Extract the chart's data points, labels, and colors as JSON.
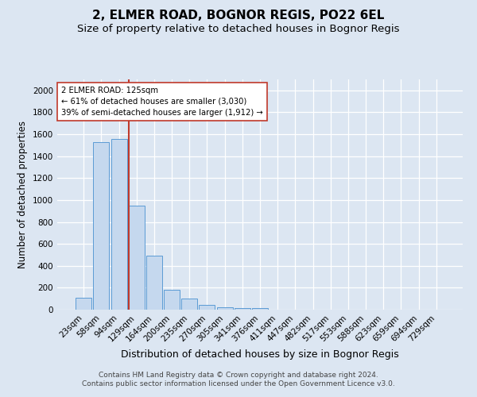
{
  "title": "2, ELMER ROAD, BOGNOR REGIS, PO22 6EL",
  "subtitle": "Size of property relative to detached houses in Bognor Regis",
  "xlabel": "Distribution of detached houses by size in Bognor Regis",
  "ylabel": "Number of detached properties",
  "categories": [
    "23sqm",
    "58sqm",
    "94sqm",
    "129sqm",
    "164sqm",
    "200sqm",
    "235sqm",
    "270sqm",
    "305sqm",
    "341sqm",
    "376sqm",
    "411sqm",
    "447sqm",
    "482sqm",
    "517sqm",
    "553sqm",
    "588sqm",
    "623sqm",
    "659sqm",
    "694sqm",
    "729sqm"
  ],
  "values": [
    110,
    1530,
    1560,
    950,
    490,
    180,
    100,
    45,
    25,
    15,
    15,
    0,
    0,
    0,
    0,
    0,
    0,
    0,
    0,
    0,
    0
  ],
  "bar_color": "#c5d8ee",
  "bar_edge_color": "#5b9bd5",
  "vline_color": "#c0392b",
  "annotation_text": "2 ELMER ROAD: 125sqm\n← 61% of detached houses are smaller (3,030)\n39% of semi-detached houses are larger (1,912) →",
  "annotation_box_color": "#ffffff",
  "annotation_box_edge": "#c0392b",
  "ylim": [
    0,
    2100
  ],
  "yticks": [
    0,
    200,
    400,
    600,
    800,
    1000,
    1200,
    1400,
    1600,
    1800,
    2000
  ],
  "background_color": "#dce6f2",
  "grid_color": "#ffffff",
  "footer": "Contains HM Land Registry data © Crown copyright and database right 2024.\nContains public sector information licensed under the Open Government Licence v3.0.",
  "title_fontsize": 11,
  "subtitle_fontsize": 9.5,
  "xlabel_fontsize": 9,
  "ylabel_fontsize": 8.5,
  "tick_fontsize": 7.5,
  "footer_fontsize": 6.5,
  "vline_bar_index": 3
}
